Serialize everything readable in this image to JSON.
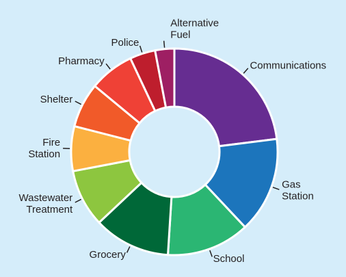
{
  "chart_data": {
    "type": "donut",
    "categories": [
      "Communications",
      "Gas Station",
      "School",
      "Grocery",
      "Wastewater Treatment",
      "Fire Station",
      "Shelter",
      "Pharmacy",
      "Police",
      "Alternative Fuel"
    ],
    "values": [
      23,
      15,
      13,
      12,
      9,
      7,
      7,
      7,
      4,
      3
    ],
    "colors": [
      "#662d91",
      "#1c75bc",
      "#2bb673",
      "#006838",
      "#8dc63f",
      "#fbb040",
      "#f15a29",
      "#ef4136",
      "#be1e2d",
      "#9e1f63"
    ]
  }
}
